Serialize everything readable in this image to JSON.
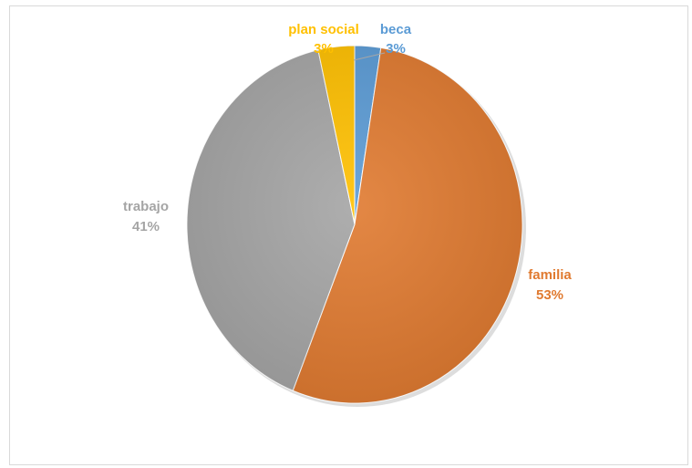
{
  "chart_data": {
    "type": "pie",
    "title": "",
    "start_angle_deg": 0,
    "direction": "clockwise",
    "slices": [
      {
        "label": "beca",
        "value": 2.5,
        "display": "3%",
        "color": "#5b9bd5"
      },
      {
        "label": "familia",
        "value": 53.5,
        "display": "53%",
        "color": "#e07a30"
      },
      {
        "label": "trabajo",
        "value": 40.5,
        "display": "41%",
        "color": "#a5a5a5"
      },
      {
        "label": "plan social",
        "value": 3.5,
        "display": "3%",
        "color": "#ffc000"
      }
    ],
    "legend": "none",
    "data_labels": "category name and percent"
  }
}
